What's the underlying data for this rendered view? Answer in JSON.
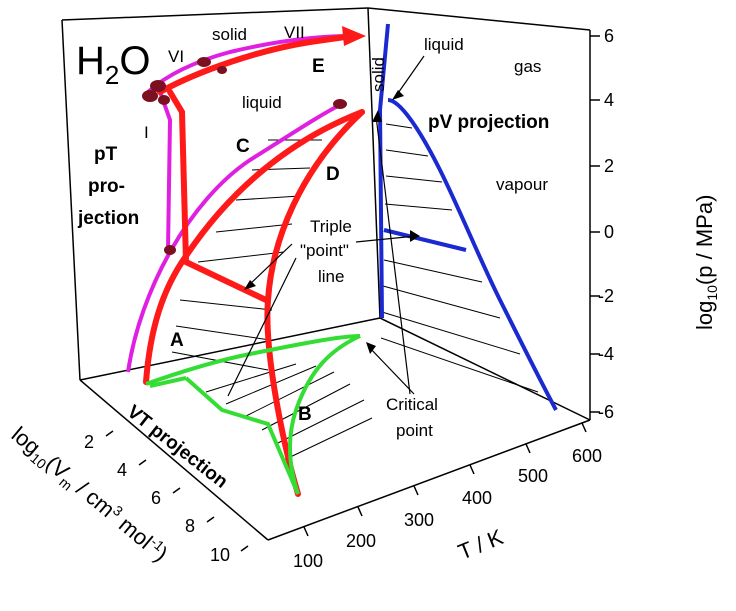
{
  "diagram": {
    "formula": {
      "main": "H",
      "sub": "2",
      "tail": "O"
    },
    "pt_projection": [
      "pT",
      "pro-",
      "jection"
    ],
    "pv_projection": "pV projection",
    "vt_projection": "VT projection",
    "regions": {
      "solid_top": "solid",
      "liquid_left": "liquid",
      "solid_right": "solid",
      "liquid_right": "liquid",
      "gas": "gas",
      "vapour": "vapour"
    },
    "phase_labels": [
      "VI",
      "VII",
      "I"
    ],
    "letters": [
      "E",
      "C",
      "D",
      "A",
      "B"
    ],
    "triple_point": [
      "Triple",
      "\"point\"",
      "line"
    ],
    "critical_point": [
      "Critical",
      "point"
    ],
    "axes": {
      "p_title": "log",
      "p_title_sub": "10",
      "p_title_rest": "(p / MPa)",
      "p_ticks": [
        "6",
        "4",
        "2",
        "0",
        "-2",
        "-4",
        "-6"
      ],
      "t_title": "T / K",
      "t_ticks": [
        "100",
        "200",
        "300",
        "400",
        "500",
        "600"
      ],
      "v_title_parts": [
        "log",
        "10",
        "(V",
        "m",
        " / cm",
        "3",
        " mol",
        "-1",
        ")"
      ],
      "v_ticks": [
        "2",
        "4",
        "6",
        "8",
        "10"
      ]
    },
    "colors": {
      "pt_curve": "#e020e0",
      "pvt_curve": "#ff1a1a",
      "vt_curve": "#33dd33",
      "pv_curve": "#1a2ad0",
      "point": "#7a1020"
    }
  }
}
